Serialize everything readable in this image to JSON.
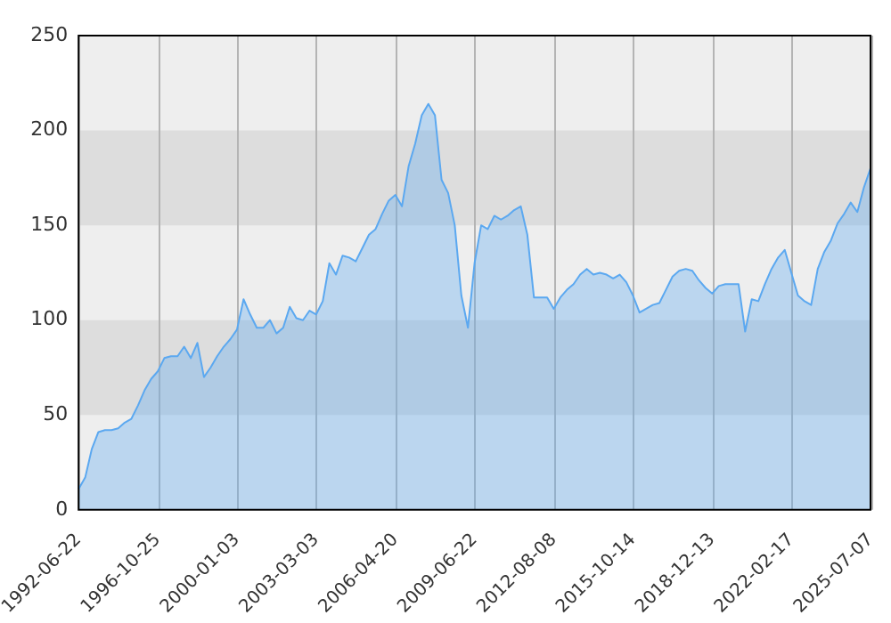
{
  "chart_data": {
    "type": "area",
    "categories": [
      "1992-06-22",
      null,
      null,
      null,
      null,
      null,
      null,
      null,
      null,
      null,
      null,
      null,
      "1996-10-25",
      null,
      null,
      null,
      null,
      null,
      null,
      null,
      null,
      null,
      null,
      null,
      "2000-01-03",
      null,
      null,
      null,
      null,
      null,
      null,
      null,
      null,
      null,
      null,
      null,
      "2003-03-03",
      null,
      null,
      null,
      null,
      null,
      null,
      null,
      null,
      null,
      null,
      null,
      "2006-04-20",
      null,
      null,
      null,
      null,
      null,
      null,
      null,
      null,
      null,
      null,
      null,
      "2009-06-22",
      null,
      null,
      null,
      null,
      null,
      null,
      null,
      null,
      null,
      null,
      null,
      "2012-08-08",
      null,
      null,
      null,
      null,
      null,
      null,
      null,
      null,
      null,
      null,
      null,
      "2015-10-14",
      null,
      null,
      null,
      null,
      null,
      null,
      null,
      null,
      null,
      null,
      null,
      "2018-12-13",
      null,
      null,
      null,
      null,
      null,
      null,
      null,
      null,
      null,
      null,
      null,
      "2022-02-17",
      null,
      null,
      null,
      null,
      null,
      null,
      null,
      null,
      null,
      null,
      null,
      "2025-07-07"
    ],
    "series": [
      {
        "color": "#5ba8f0",
        "values": [
          11,
          17,
          32,
          41,
          42,
          42,
          43,
          46,
          48,
          55,
          63,
          69,
          73,
          80,
          81,
          81,
          86,
          80,
          88,
          70,
          75,
          81,
          86,
          90,
          95,
          111,
          103,
          96,
          96,
          100,
          93,
          96,
          107,
          101,
          100,
          105,
          103,
          110,
          130,
          124,
          134,
          133,
          131,
          138,
          145,
          148,
          156,
          163,
          166,
          160,
          181,
          193,
          208,
          214,
          208,
          174,
          167,
          150,
          113,
          96,
          130,
          150,
          148,
          155,
          153,
          155,
          158,
          160,
          145,
          112,
          112,
          112,
          106,
          112,
          116,
          119,
          124,
          127,
          124,
          125,
          124,
          122,
          124,
          120,
          113,
          104,
          106,
          108,
          109,
          116,
          123,
          126,
          127,
          126,
          121,
          117,
          114,
          118,
          119,
          119,
          119,
          94,
          111,
          110,
          119,
          127,
          133,
          137,
          125,
          113,
          110,
          108,
          127,
          136,
          142,
          151,
          156,
          162,
          157,
          170,
          180
        ]
      }
    ],
    "ylim": [
      0,
      250
    ],
    "yticks": [
      0,
      50,
      100,
      150,
      200,
      250
    ],
    "bands": [
      {
        "axis": "y",
        "from": 50,
        "to": 100,
        "color": "#dddddd"
      },
      {
        "axis": "y",
        "from": 150,
        "to": 200,
        "color": "#dddddd"
      }
    ],
    "grid": "x",
    "marker": "none",
    "legend": false
  }
}
